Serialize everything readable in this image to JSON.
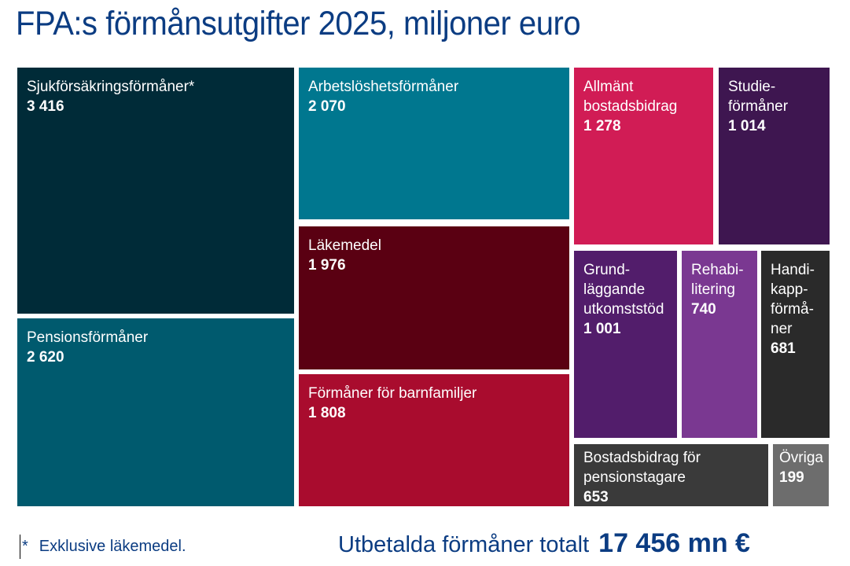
{
  "chart_data": {
    "type": "treemap",
    "title": "FPA:s förmånsutgifter 2025, miljoner euro",
    "items": [
      {
        "label": "Sjukförsäkringsförmåner*",
        "value": "3 416",
        "color": "#002b38"
      },
      {
        "label": "Pensionsförmåner",
        "value": "2 620",
        "color": "#005a6e"
      },
      {
        "label": "Arbetslöshetsförmåner",
        "value": "2 070",
        "color": "#00778f"
      },
      {
        "label": "Läkemedel",
        "value": "1 976",
        "color": "#5a0012"
      },
      {
        "label": "Förmåner för barnfamiljer",
        "value": "1 808",
        "color": "#a90c2e"
      },
      {
        "label": "Allmänt\nbostadsbidrag",
        "value": "1 278",
        "color": "#d11c55"
      },
      {
        "label": "Studie-\nförmåner",
        "value": "1 014",
        "color": "#3e1650"
      },
      {
        "label": "Grund-\nläggande\nutkomststöd",
        "value": "1 001",
        "color": "#521d6b"
      },
      {
        "label": "Rehabi-\nlitering",
        "value": "740",
        "color": "#7a3891"
      },
      {
        "label": "Handi-\nkapp-\nförmå-\nner",
        "value": "681",
        "color": "#2a2a2a"
      },
      {
        "label": "Bostadsbidrag för\npensionstagare",
        "value": "653",
        "color": "#3a3a3a"
      },
      {
        "label": "Övriga",
        "value": "199",
        "color": "#6d6d6d"
      }
    ],
    "footnote_marker": "*",
    "footnote": "Exklusive läkemedel.",
    "total_label": "Utbetalda förmåner totalt",
    "total_value": "17 456 mn €"
  }
}
